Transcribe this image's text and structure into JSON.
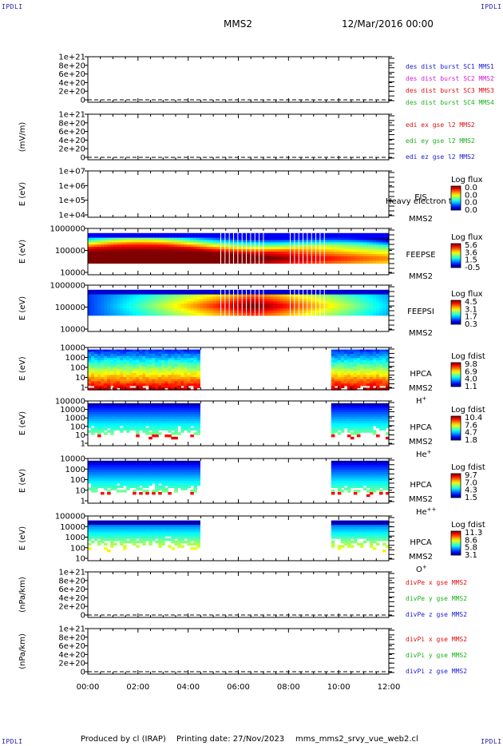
{
  "corner_label": "IPDLI",
  "header": {
    "satellite": "MMS2",
    "date": "12/Mar/2016 00:00"
  },
  "footer": {
    "produced_by": "Produced by cl (IRAP)",
    "printing_date": "Printing date: 27/Nov/2023",
    "filename": "mms_mms2_srvy_vue_web2.cl"
  },
  "chart_data": [
    {
      "id": "des",
      "type": "line",
      "ylabel": "",
      "yticks": [
        "1e+21",
        "8e+20",
        "6e+20",
        "4e+20",
        "2e+20",
        "0"
      ],
      "legend": [
        {
          "text": "des dist burst SC1 MMS1",
          "color": "#1b1bd6"
        },
        {
          "text": "des dist burst SC2 MMS2",
          "color": "#d61bd6"
        },
        {
          "text": "des dist burst SC3 MMS3",
          "color": "#e01010"
        },
        {
          "text": "des dist burst SC4 MMS4",
          "color": "#1bb31b"
        }
      ]
    },
    {
      "id": "edi",
      "type": "line",
      "ylabel": "(mV/m)",
      "yticks": [
        "1e+21",
        "8e+20",
        "6e+20",
        "4e+20",
        "2e+20",
        "0"
      ],
      "legend": [
        {
          "text": "edi ex gse l2 MMS2",
          "color": "#e01010"
        },
        {
          "text": "edi ey gse l2 MMS2",
          "color": "#1bb31b"
        },
        {
          "text": "edi ez gse l2 MMS2",
          "color": "#1b1bd6"
        }
      ]
    },
    {
      "id": "eis",
      "type": "heatmap",
      "ylabel": "E (eV)",
      "yticks": [
        "1e+07",
        "1e+06",
        "1e+05",
        "1e+04"
      ],
      "right_labels": [
        "EIS",
        "MMS2"
      ],
      "overlap_text": "Heavy electron to",
      "colorbar": {
        "title": "Log flux",
        "ticks": [
          "0.0",
          "0.0",
          "0.0",
          "0.0"
        ]
      }
    },
    {
      "id": "feepse",
      "type": "heatmap",
      "ylabel": "E (eV)",
      "yticks": [
        "1000000",
        "100000",
        "10000"
      ],
      "right_labels": [
        "FEEPSE",
        "MMS2"
      ],
      "colorbar": {
        "title": "Log flux",
        "ticks": [
          "5.6",
          "3.6",
          "1.5",
          "-0.5"
        ]
      }
    },
    {
      "id": "feepsi",
      "type": "heatmap",
      "ylabel": "E (eV)",
      "yticks": [
        "1000000",
        "100000",
        "10000"
      ],
      "right_labels": [
        "FEEPSI",
        "MMS2"
      ],
      "colorbar": {
        "title": "Log flux",
        "ticks": [
          "4.5",
          "3.1",
          "1.7",
          "0.3"
        ]
      }
    },
    {
      "id": "hpca_h",
      "type": "heatmap",
      "ylabel": "E (eV)",
      "yticks": [
        "10000",
        "1000",
        "100",
        "10",
        "1"
      ],
      "right_labels": [
        "HPCA",
        "MMS2"
      ],
      "species": {
        "base": "H",
        "sup": "+"
      },
      "colorbar": {
        "title": "Log fdist",
        "ticks": [
          "9.8",
          "6.9",
          "4.0",
          "1.1"
        ]
      }
    },
    {
      "id": "hpca_he",
      "type": "heatmap",
      "ylabel": "E (eV)",
      "yticks": [
        "100000",
        "10000",
        "1000",
        "100",
        "10",
        "1"
      ],
      "right_labels": [
        "HPCA",
        "MMS2"
      ],
      "species": {
        "base": "He",
        "sup": "+"
      },
      "colorbar": {
        "title": "Log fdist",
        "ticks": [
          "10.4",
          "7.6",
          "4.7",
          "1.8"
        ]
      }
    },
    {
      "id": "hpca_he2",
      "type": "heatmap",
      "ylabel": "E (eV)",
      "yticks": [
        "10000",
        "1000",
        "100",
        "10",
        "1"
      ],
      "right_labels": [
        "HPCA",
        "MMS2"
      ],
      "species": {
        "base": "He",
        "sup": "++"
      },
      "colorbar": {
        "title": "Log fdist",
        "ticks": [
          "9.7",
          "7.0",
          "4.3",
          "1.5"
        ]
      }
    },
    {
      "id": "hpca_o",
      "type": "heatmap",
      "ylabel": "E (eV)",
      "yticks": [
        "100000",
        "10000",
        "1000",
        "100",
        "10"
      ],
      "right_labels": [
        "HPCA",
        "MMS2"
      ],
      "species": {
        "base": "O",
        "sup": "+"
      },
      "colorbar": {
        "title": "Log fdist",
        "ticks": [
          "11.3",
          "8.6",
          "5.8",
          "3.1"
        ]
      }
    },
    {
      "id": "divpe",
      "type": "line",
      "ylabel": "(nPa/km)",
      "yticks": [
        "1e+21",
        "8e+20",
        "6e+20",
        "4e+20",
        "2e+20",
        "0"
      ],
      "legend": [
        {
          "text": "divPe x gse MMS2",
          "color": "#e01010"
        },
        {
          "text": "divPe y gse MMS2",
          "color": "#1bb31b"
        },
        {
          "text": "divPe z gse MMS2",
          "color": "#1b1bd6"
        }
      ]
    },
    {
      "id": "divpi",
      "type": "line",
      "ylabel": "(nPa/km)",
      "yticks": [
        "1e+21",
        "8e+20",
        "6e+20",
        "4e+20",
        "2e+20",
        "0"
      ],
      "legend": [
        {
          "text": "divPi x gse MMS2",
          "color": "#e01010"
        },
        {
          "text": "divPi y gse MMS2",
          "color": "#1bb31b"
        },
        {
          "text": "divPi z gse MMS2",
          "color": "#1b1bd6"
        }
      ]
    }
  ],
  "xaxis": {
    "ticks": [
      "00:00",
      "02:00",
      "04:00",
      "06:00",
      "08:00",
      "10:00",
      "12:00"
    ],
    "range_hours": [
      0,
      12
    ],
    "hpca_data_gap_hours": [
      4.45,
      9.65
    ]
  }
}
